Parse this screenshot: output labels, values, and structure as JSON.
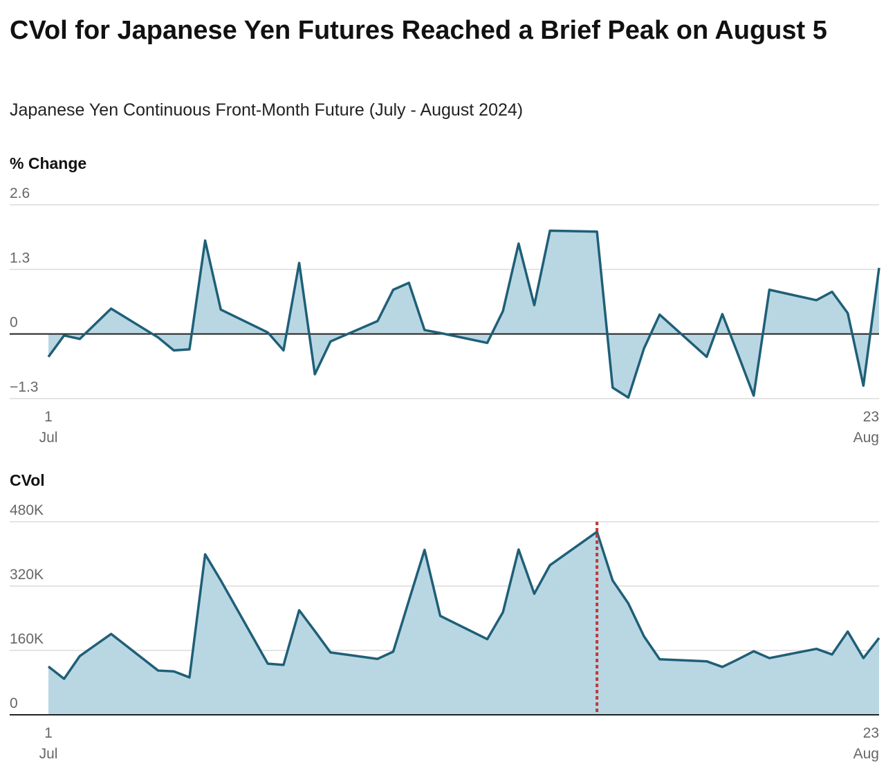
{
  "title": "CVol for Japanese Yen Futures Reached a Brief Peak on August 5",
  "subtitle": "Japanese Yen Continuous Front-Month Future (July - August 2024)",
  "chart_data": [
    {
      "type": "area",
      "ylabel": "% Change",
      "color": "#1f5f78",
      "fill_color": "#b9d7e2",
      "x": [
        "Jul 1",
        "Jul 2",
        "Jul 3",
        "Jul 5",
        "Jul 8",
        "Jul 9",
        "Jul 10",
        "Jul 11",
        "Jul 12",
        "Jul 15",
        "Jul 16",
        "Jul 17",
        "Jul 18",
        "Jul 19",
        "Jul 22",
        "Jul 23",
        "Jul 24",
        "Jul 25",
        "Jul 26",
        "Jul 29",
        "Jul 30",
        "Jul 31",
        "Aug 1",
        "Aug 2",
        "Aug 5",
        "Aug 6",
        "Aug 7",
        "Aug 8",
        "Aug 9",
        "Aug 12",
        "Aug 13",
        "Aug 14",
        "Aug 15",
        "Aug 16",
        "Aug 19",
        "Aug 20",
        "Aug 21",
        "Aug 22",
        "Aug 23"
      ],
      "values": [
        -0.46,
        -0.03,
        -0.1,
        0.51,
        -0.07,
        -0.33,
        -0.31,
        1.88,
        0.49,
        0.03,
        -0.33,
        1.43,
        -0.81,
        -0.15,
        0.26,
        0.89,
        1.03,
        0.08,
        0.02,
        -0.18,
        0.46,
        1.82,
        0.58,
        2.08,
        2.06,
        -1.08,
        -1.28,
        -0.29,
        0.39,
        -0.46,
        0.4,
        -0.41,
        -1.24,
        0.89,
        0.68,
        0.85,
        0.42,
        -1.04,
        1.33
      ],
      "ylim": [
        -1.3,
        2.6
      ],
      "yticks": [
        {
          "value": -1.3,
          "label": "−1.3"
        },
        0,
        1.3,
        2.6
      ],
      "xticks": [
        {
          "value": "Jul 1",
          "label": [
            "1",
            "Jul"
          ]
        },
        {
          "value": "Aug 23",
          "label": [
            "23",
            "Aug"
          ]
        }
      ],
      "grid": true
    },
    {
      "type": "area",
      "ylabel": "CVol",
      "color": "#1f5f78",
      "fill_color": "#b9d7e2",
      "x": [
        "Jul 1",
        "Jul 2",
        "Jul 3",
        "Jul 5",
        "Jul 8",
        "Jul 9",
        "Jul 10",
        "Jul 11",
        "Jul 12",
        "Jul 15",
        "Jul 16",
        "Jul 17",
        "Jul 18",
        "Jul 19",
        "Jul 22",
        "Jul 23",
        "Jul 24",
        "Jul 25",
        "Jul 26",
        "Jul 29",
        "Jul 30",
        "Jul 31",
        "Aug 1",
        "Aug 2",
        "Aug 5",
        "Aug 6",
        "Aug 7",
        "Aug 8",
        "Aug 9",
        "Aug 12",
        "Aug 13",
        "Aug 14",
        "Aug 15",
        "Aug 16",
        "Aug 19",
        "Aug 20",
        "Aug 21",
        "Aug 22",
        "Aug 23"
      ],
      "values": [
        120000,
        89500,
        146000,
        201000,
        110000,
        108000,
        93000,
        399000,
        334000,
        127000,
        124000,
        260000,
        208000,
        155000,
        139000,
        157000,
        284000,
        410000,
        246000,
        188000,
        255000,
        411000,
        301000,
        372000,
        455000,
        334000,
        277000,
        195000,
        138000,
        133000,
        119000,
        138000,
        158000,
        141000,
        164000,
        150000,
        207000,
        141000,
        191000
      ],
      "ylim": [
        0,
        480000
      ],
      "yticks": [
        0,
        {
          "value": 160000,
          "label": "160K"
        },
        {
          "value": 320000,
          "label": "320K"
        },
        {
          "value": 480000,
          "label": "480K"
        }
      ],
      "xticks": [
        {
          "value": "Jul 1",
          "label": [
            "1",
            "Jul"
          ]
        },
        {
          "value": "Aug 23",
          "label": [
            "23",
            "Aug"
          ]
        }
      ],
      "grid": true,
      "highlight_x": "Aug 5",
      "highlight_color": "#c0393b"
    }
  ]
}
